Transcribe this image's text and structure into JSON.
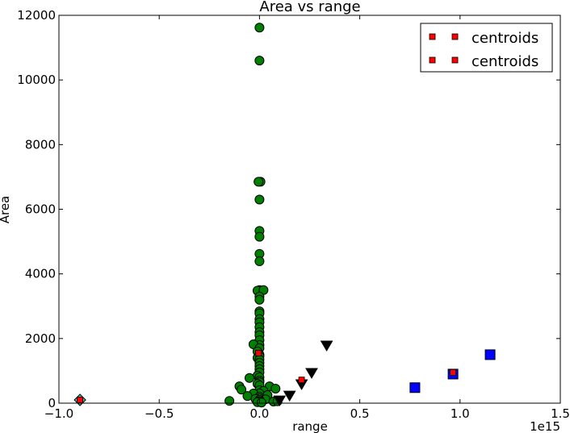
{
  "chart_data": {
    "type": "scatter",
    "title": "Area vs range",
    "xlabel": "range",
    "ylabel": "Area",
    "x_offset_label": "1e15",
    "xlim": [
      -1.0,
      1.5
    ],
    "ylim": [
      0,
      12000
    ],
    "x_scale": 1000000000000000.0,
    "grid": false,
    "legend_position": "top-right",
    "x_tick_labels": [
      "−1.0",
      "−0.5",
      "0.0",
      "0.5",
      "1.0",
      "1.5"
    ],
    "x_tick_values": [
      -1.0,
      -0.5,
      0.0,
      0.5,
      1.0,
      1.5
    ],
    "y_tick_labels": [
      "0",
      "2000",
      "4000",
      "6000",
      "8000",
      "10000",
      "12000"
    ],
    "y_tick_values": [
      0,
      2000,
      4000,
      6000,
      8000,
      10000,
      12000
    ],
    "legend": [
      "centroids",
      "centroids"
    ],
    "series": [
      {
        "marker": "circle",
        "color": "#008000",
        "points": [
          [
            0.0,
            11620
          ],
          [
            0.0,
            10600
          ],
          [
            0.005,
            6850
          ],
          [
            -0.005,
            6850
          ],
          [
            0.0,
            6300
          ],
          [
            0.0,
            5330
          ],
          [
            0.0,
            5150
          ],
          [
            0.0,
            4620
          ],
          [
            0.0,
            4390
          ],
          [
            0.0,
            3500
          ],
          [
            -0.01,
            3480
          ],
          [
            0.02,
            3500
          ],
          [
            0.0,
            3300
          ],
          [
            0.0,
            3200
          ],
          [
            0.0,
            2840
          ],
          [
            0.0,
            2780
          ],
          [
            0.0,
            2600
          ],
          [
            0.0,
            2500
          ],
          [
            0.0,
            2350
          ],
          [
            0.0,
            2200
          ],
          [
            0.0,
            2100
          ],
          [
            0.0,
            1950
          ],
          [
            0.0,
            1800
          ],
          [
            -0.03,
            1820
          ],
          [
            0.0,
            1700
          ],
          [
            -0.01,
            1600
          ],
          [
            0.0,
            1500
          ],
          [
            0.0,
            1450
          ],
          [
            -0.01,
            1400
          ],
          [
            0.0,
            1350
          ],
          [
            0.0,
            1250
          ],
          [
            0.0,
            1150
          ],
          [
            0.0,
            1050
          ],
          [
            0.0,
            950
          ],
          [
            -0.01,
            850
          ],
          [
            0.0,
            800
          ],
          [
            -0.05,
            780
          ],
          [
            0.0,
            700
          ],
          [
            0.0,
            650
          ],
          [
            -0.01,
            600
          ],
          [
            0.0,
            550
          ],
          [
            -0.1,
            520
          ],
          [
            0.05,
            520
          ],
          [
            0.08,
            450
          ],
          [
            -0.09,
            420
          ],
          [
            0.0,
            400
          ],
          [
            0.02,
            380
          ],
          [
            0.0,
            300
          ],
          [
            -0.03,
            300
          ],
          [
            0.04,
            250
          ],
          [
            -0.06,
            220
          ],
          [
            0.0,
            200
          ],
          [
            0.0,
            150
          ],
          [
            -0.02,
            130
          ],
          [
            0.03,
            120
          ],
          [
            0.0,
            100
          ],
          [
            -0.15,
            70
          ],
          [
            0.0,
            60
          ],
          [
            0.07,
            50
          ],
          [
            0.09,
            60
          ],
          [
            -0.01,
            30
          ],
          [
            0.01,
            20
          ]
        ]
      },
      {
        "marker": "triangle-down",
        "color": "#000000",
        "points": [
          [
            0.335,
            1800
          ],
          [
            0.26,
            950
          ],
          [
            0.21,
            600
          ],
          [
            0.15,
            250
          ],
          [
            0.1,
            100
          ]
        ]
      },
      {
        "marker": "square",
        "color": "#0000ff",
        "points": [
          [
            1.15,
            1500
          ],
          [
            0.965,
            900
          ],
          [
            0.775,
            480
          ]
        ]
      },
      {
        "marker": "diamond",
        "color": "#40c0c0",
        "points": [
          [
            -0.895,
            100
          ]
        ]
      },
      {
        "marker": "small-square",
        "color": "#ff0000",
        "is_centroid": true,
        "points": [
          [
            -0.005,
            1550
          ],
          [
            0.21,
            720
          ],
          [
            0.965,
            950
          ],
          [
            -0.895,
            100
          ]
        ]
      }
    ]
  }
}
